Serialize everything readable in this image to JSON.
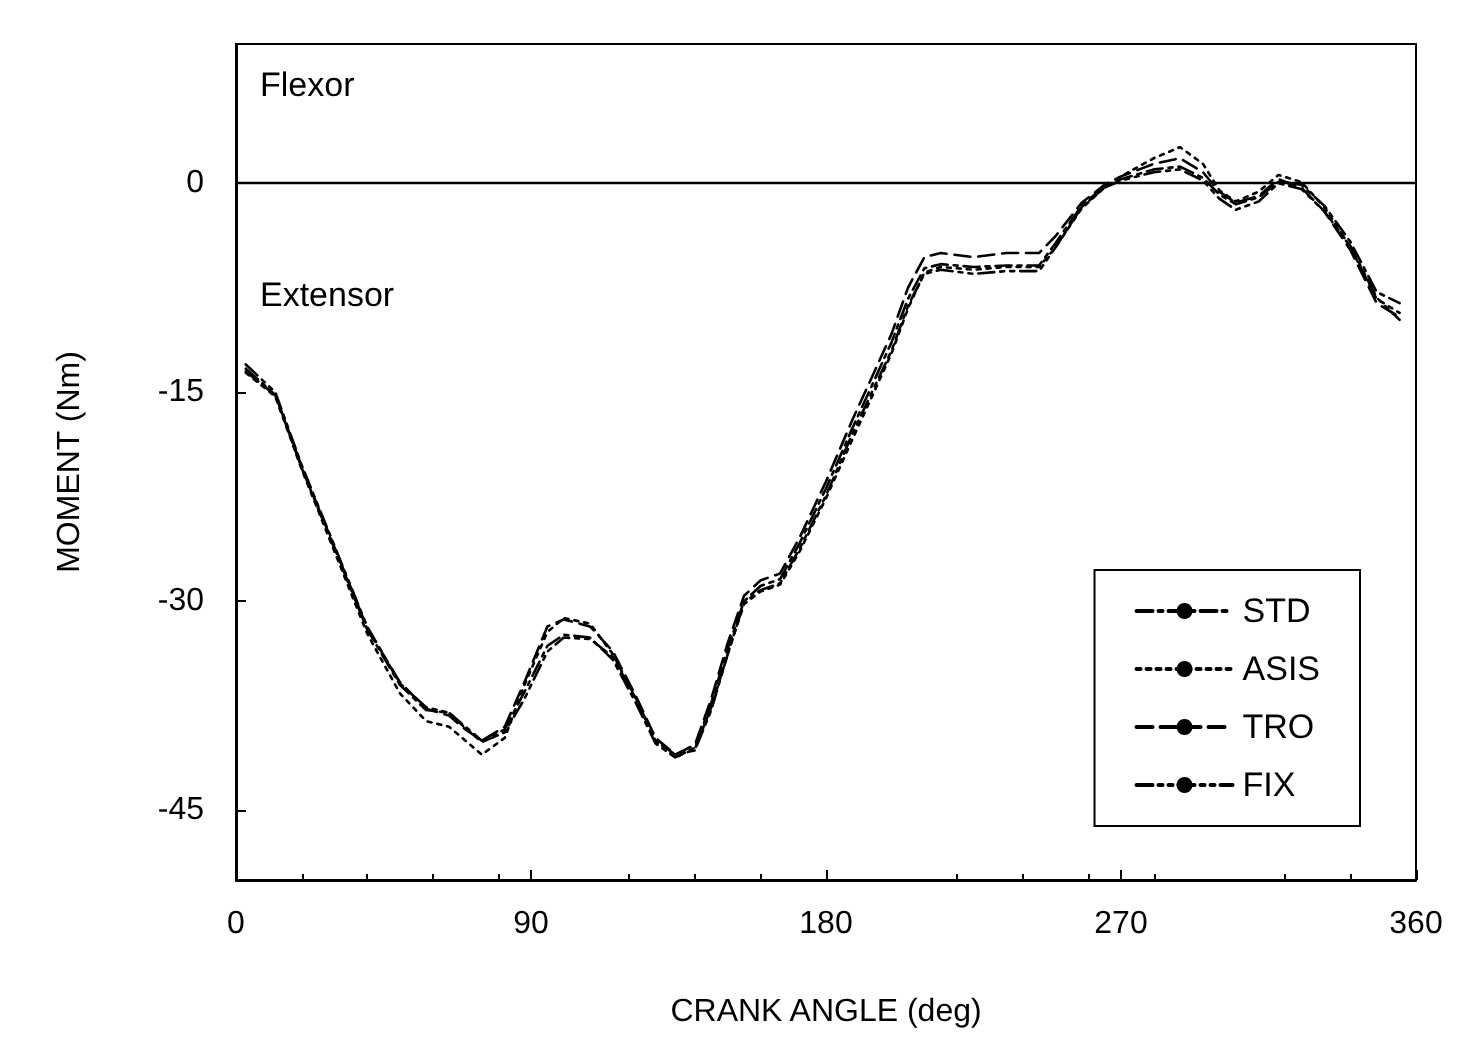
{
  "chart_data": {
    "type": "line",
    "xlabel": "CRANK ANGLE (deg)",
    "ylabel": "MOMENT (Nm)",
    "annotations": [
      "Flexor",
      "Extensor"
    ],
    "xlim": [
      0,
      360
    ],
    "xticks": [
      0,
      90,
      180,
      270,
      360
    ],
    "ylim": [
      -50,
      10
    ],
    "yticks": [
      -45,
      -30,
      -15,
      0
    ],
    "x": [
      3,
      12,
      20,
      30,
      40,
      50,
      58,
      65,
      70,
      75,
      82,
      88,
      95,
      100,
      108,
      115,
      122,
      128,
      134,
      140,
      145,
      150,
      155,
      160,
      166,
      172,
      180,
      188,
      195,
      200,
      205,
      210,
      215,
      225,
      235,
      245,
      250,
      258,
      265,
      270,
      280,
      288,
      295,
      300,
      305,
      312,
      318,
      325,
      332,
      340,
      348,
      355
    ],
    "series": [
      {
        "name": "STD",
        "color": "#000000",
        "line_style": "dashdot",
        "values": [
          -13.3,
          -15.2,
          -20.4,
          -26.2,
          -32,
          -36,
          -37.8,
          -38,
          -39,
          -40,
          -39.2,
          -36.5,
          -33.2,
          -32.4,
          -32.6,
          -34.2,
          -37.3,
          -40.2,
          -41.2,
          -40.5,
          -37.3,
          -33.4,
          -30,
          -28.9,
          -28.4,
          -25.8,
          -21.9,
          -17.6,
          -14,
          -11.4,
          -8.3,
          -6.1,
          -5.8,
          -6,
          -5.9,
          -5.9,
          -4.3,
          -1.6,
          -0.2,
          0.3,
          1,
          1.2,
          0.4,
          -0.8,
          -1.5,
          -1,
          0.1,
          -0.1,
          -1.6,
          -4.2,
          -7.8,
          -8.6
        ]
      },
      {
        "name": "ASIS",
        "color": "#000000",
        "line_style": "dotted",
        "values": [
          -13.6,
          -15.3,
          -20.5,
          -26.4,
          -32.3,
          -36.6,
          -38.6,
          -39,
          -40,
          -41,
          -39.8,
          -36,
          -32.2,
          -31.2,
          -31.6,
          -33.8,
          -37,
          -40,
          -41.2,
          -40.6,
          -37.6,
          -33.8,
          -30.2,
          -29.3,
          -28.8,
          -26.4,
          -22.6,
          -18.4,
          -14.8,
          -12.2,
          -9,
          -6.4,
          -6,
          -6.2,
          -6,
          -6,
          -4.6,
          -1.8,
          -0.3,
          0.5,
          1.8,
          2.6,
          1.4,
          -0.5,
          -1.3,
          -0.6,
          0.6,
          0.1,
          -1.7,
          -4.6,
          -8.3,
          -9.3
        ]
      },
      {
        "name": "TRO",
        "color": "#000000",
        "line_style": "dashed",
        "values": [
          -13.5,
          -15.2,
          -20.3,
          -26.1,
          -31.9,
          -35.8,
          -37.7,
          -38.2,
          -39.2,
          -40,
          -39,
          -35.8,
          -31.8,
          -31.3,
          -31.8,
          -33.6,
          -36.8,
          -39.8,
          -41,
          -40.3,
          -37,
          -33,
          -29.6,
          -28.5,
          -28,
          -25.4,
          -21.4,
          -17,
          -13.4,
          -10.8,
          -7.5,
          -5.3,
          -5,
          -5.3,
          -5,
          -5,
          -3.8,
          -1.4,
          -0.1,
          0.5,
          1.4,
          1.8,
          0.8,
          -0.6,
          -1.4,
          -0.9,
          0.3,
          -0.3,
          -2,
          -4.8,
          -8.6,
          -9.6
        ]
      },
      {
        "name": "FIX",
        "color": "#000000",
        "line_style": "dashdotdot",
        "values": [
          -13,
          -15,
          -20.2,
          -26,
          -31.8,
          -35.9,
          -37.6,
          -38,
          -39.1,
          -40.1,
          -39.4,
          -37,
          -33.6,
          -32.6,
          -32.7,
          -34,
          -37,
          -40,
          -41,
          -40.7,
          -37.8,
          -33.8,
          -30.1,
          -29.2,
          -28.7,
          -26.2,
          -22.4,
          -18,
          -14.5,
          -12,
          -8.8,
          -6.5,
          -6.2,
          -6.5,
          -6.3,
          -6.3,
          -4.6,
          -1.7,
          -0.3,
          0.2,
          0.8,
          1,
          0.2,
          -1.1,
          -1.9,
          -1.3,
          0,
          -0.4,
          -2,
          -4.5,
          -8.2,
          -9.8
        ]
      }
    ],
    "ref_lines": [
      {
        "axis": "y",
        "value": 0,
        "color": "#000000",
        "line_style": "solid"
      }
    ],
    "grid": false,
    "legend": "bottom right",
    "marker": "none"
  }
}
